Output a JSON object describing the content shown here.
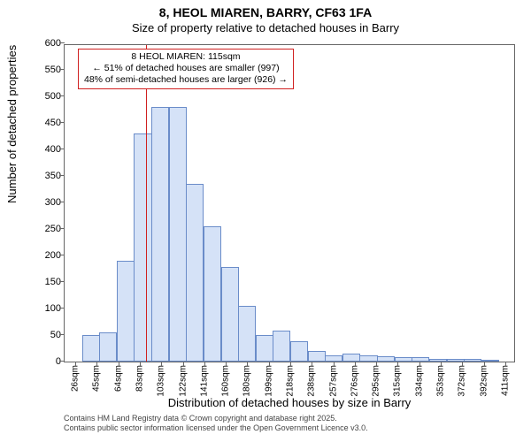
{
  "title_line1": "8, HEOL MIAREN, BARRY, CF63 1FA",
  "title_line2": "Size of property relative to detached houses in Barry",
  "ylabel": "Number of detached properties",
  "xlabel": "Distribution of detached houses by size in Barry",
  "credit_line1": "Contains HM Land Registry data © Crown copyright and database right 2025.",
  "credit_line2": "Contains public sector information licensed under the Open Government Licence v3.0.",
  "chart": {
    "type": "histogram",
    "background_color": "#ffffff",
    "axis_color": "#666666",
    "bar_fill": "#d5e2f7",
    "bar_border": "#6a8cc9",
    "refline_color": "#d02020",
    "annot_border": "#d02020",
    "title_fontsize": 14,
    "subtitle_fontsize": 13,
    "label_fontsize": 13,
    "tick_fontsize": 11,
    "ylim": [
      0,
      600
    ],
    "ytick_step": 50,
    "bar_values": [
      0,
      50,
      55,
      190,
      430,
      480,
      480,
      335,
      255,
      178,
      105,
      50,
      58,
      38,
      20,
      12,
      15,
      12,
      10,
      8,
      8,
      5,
      5,
      5,
      4,
      0
    ],
    "x_ticks_labels": [
      "26sqm",
      "45sqm",
      "64sqm",
      "83sqm",
      "103sqm",
      "122sqm",
      "141sqm",
      "160sqm",
      "180sqm",
      "199sqm",
      "218sqm",
      "238sqm",
      "257sqm",
      "276sqm",
      "295sqm",
      "315sqm",
      "334sqm",
      "353sqm",
      "372sqm",
      "392sqm",
      "411sqm"
    ],
    "x_ticks_indices": [
      0,
      1,
      2,
      3,
      4,
      5,
      6,
      7,
      8,
      9,
      10,
      11,
      12,
      13,
      14,
      15,
      16,
      17,
      18,
      19,
      20
    ],
    "n_bars": 26,
    "refline_bar_index": 4.7,
    "annotation": {
      "line1": "8 HEOL MIAREN: 115sqm",
      "line2": "← 51% of detached houses are smaller (997)",
      "line3": "48% of semi-detached houses are larger (926) →"
    }
  }
}
